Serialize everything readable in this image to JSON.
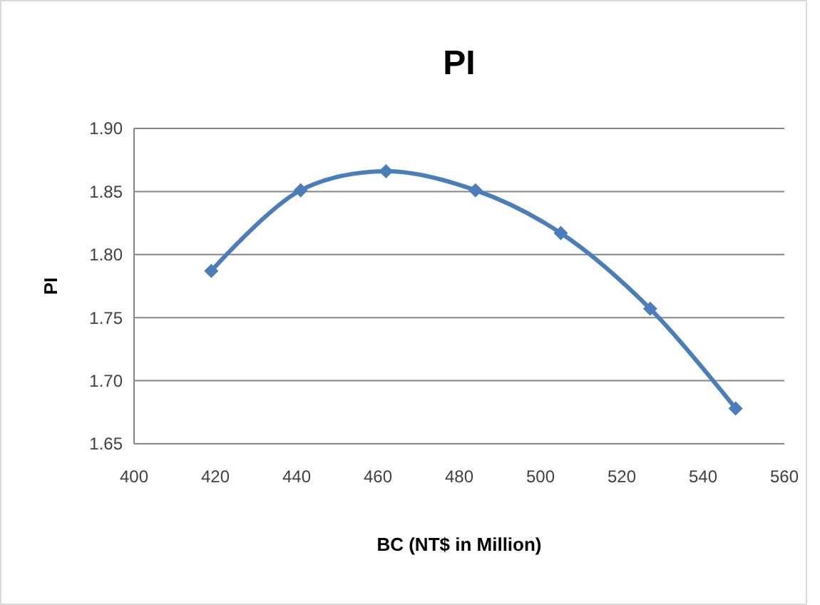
{
  "chart_data": {
    "type": "line",
    "title": "PI",
    "xlabel": "BC (NT$ in Million)",
    "ylabel": "PI",
    "x": [
      419,
      441,
      462,
      484,
      505,
      527,
      548
    ],
    "series": [
      {
        "color": "#4a7ebb",
        "values": [
          1.787,
          1.851,
          1.866,
          1.851,
          1.817,
          1.757,
          1.678
        ]
      }
    ],
    "xlim": [
      400,
      560
    ],
    "xticks": [
      400,
      420,
      440,
      460,
      480,
      500,
      520,
      540,
      560
    ],
    "ylim": [
      1.65,
      1.9
    ],
    "yticks": [
      {
        "value": 1.65,
        "label": "1.65"
      },
      {
        "value": 1.7,
        "label": "1.70"
      },
      {
        "value": 1.75,
        "label": "1.75"
      },
      {
        "value": 1.8,
        "label": "1.80"
      },
      {
        "value": 1.85,
        "label": "1.85"
      },
      {
        "value": 1.9,
        "label": "1.90"
      }
    ],
    "grid": "y",
    "marker": "diamond",
    "line_style": "solid"
  }
}
